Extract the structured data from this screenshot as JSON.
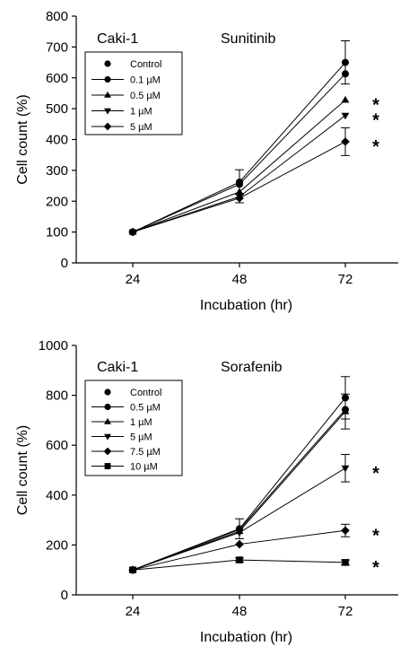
{
  "chart_data": [
    {
      "type": "line",
      "cell_line": "Caki-1",
      "drug": "Sunitinib",
      "xlabel": "Incubation (hr)",
      "ylabel": "Cell count (%)",
      "x": [
        24,
        48,
        72
      ],
      "x_ticks": [
        "24",
        "48",
        "72"
      ],
      "y_ticks": [
        "0",
        "100",
        "200",
        "300",
        "400",
        "500",
        "600",
        "700",
        "800"
      ],
      "ylim": [
        0,
        800
      ],
      "legend_position": "top-left",
      "series": [
        {
          "name": "Control",
          "marker": "circle",
          "values": [
            100,
            262,
            650
          ],
          "errors": [
            0,
            40,
            70
          ]
        },
        {
          "name": "0.1 µM",
          "marker": "circle",
          "values": [
            100,
            255,
            613
          ],
          "errors": [
            0,
            0,
            0
          ]
        },
        {
          "name": "0.5 µM",
          "marker": "triangle-up",
          "values": [
            100,
            230,
            528
          ],
          "errors": [
            0,
            0,
            0
          ]
        },
        {
          "name": "1 µM",
          "marker": "triangle-down",
          "values": [
            100,
            215,
            478
          ],
          "errors": [
            0,
            0,
            0
          ]
        },
        {
          "name": "5 µM",
          "marker": "diamond",
          "values": [
            100,
            210,
            393
          ],
          "errors": [
            0,
            15,
            45
          ]
        }
      ],
      "annotations": [
        {
          "text": "*",
          "x": 72,
          "y": 528
        },
        {
          "text": "*",
          "x": 72,
          "y": 478
        },
        {
          "text": "*",
          "x": 72,
          "y": 393
        }
      ]
    },
    {
      "type": "line",
      "cell_line": "Caki-1",
      "drug": "Sorafenib",
      "xlabel": "Incubation (hr)",
      "ylabel": "Cell count (%)",
      "x": [
        24,
        48,
        72
      ],
      "x_ticks": [
        "24",
        "48",
        "72"
      ],
      "y_ticks": [
        "0",
        "200",
        "400",
        "600",
        "800",
        "1000"
      ],
      "ylim": [
        0,
        1000
      ],
      "legend_position": "top-left",
      "series": [
        {
          "name": "Control",
          "marker": "circle",
          "values": [
            100,
            265,
            790
          ],
          "errors": [
            0,
            40,
            85
          ]
        },
        {
          "name": "0.5 µM",
          "marker": "circle",
          "values": [
            100,
            262,
            743
          ],
          "errors": [
            0,
            0,
            0
          ]
        },
        {
          "name": "1 µM",
          "marker": "triangle-up",
          "values": [
            100,
            255,
            735
          ],
          "errors": [
            0,
            0,
            70
          ]
        },
        {
          "name": "5 µM",
          "marker": "triangle-down",
          "values": [
            100,
            250,
            508
          ],
          "errors": [
            0,
            0,
            55
          ]
        },
        {
          "name": "7.5 µM",
          "marker": "diamond",
          "values": [
            100,
            203,
            258
          ],
          "errors": [
            0,
            0,
            25
          ]
        },
        {
          "name": "10 µM",
          "marker": "square",
          "values": [
            100,
            140,
            130
          ],
          "errors": [
            0,
            8,
            10
          ]
        }
      ],
      "annotations": [
        {
          "text": "*",
          "x": 72,
          "y": 508
        },
        {
          "text": "*",
          "x": 72,
          "y": 258
        },
        {
          "text": "*",
          "x": 72,
          "y": 130
        }
      ]
    }
  ]
}
